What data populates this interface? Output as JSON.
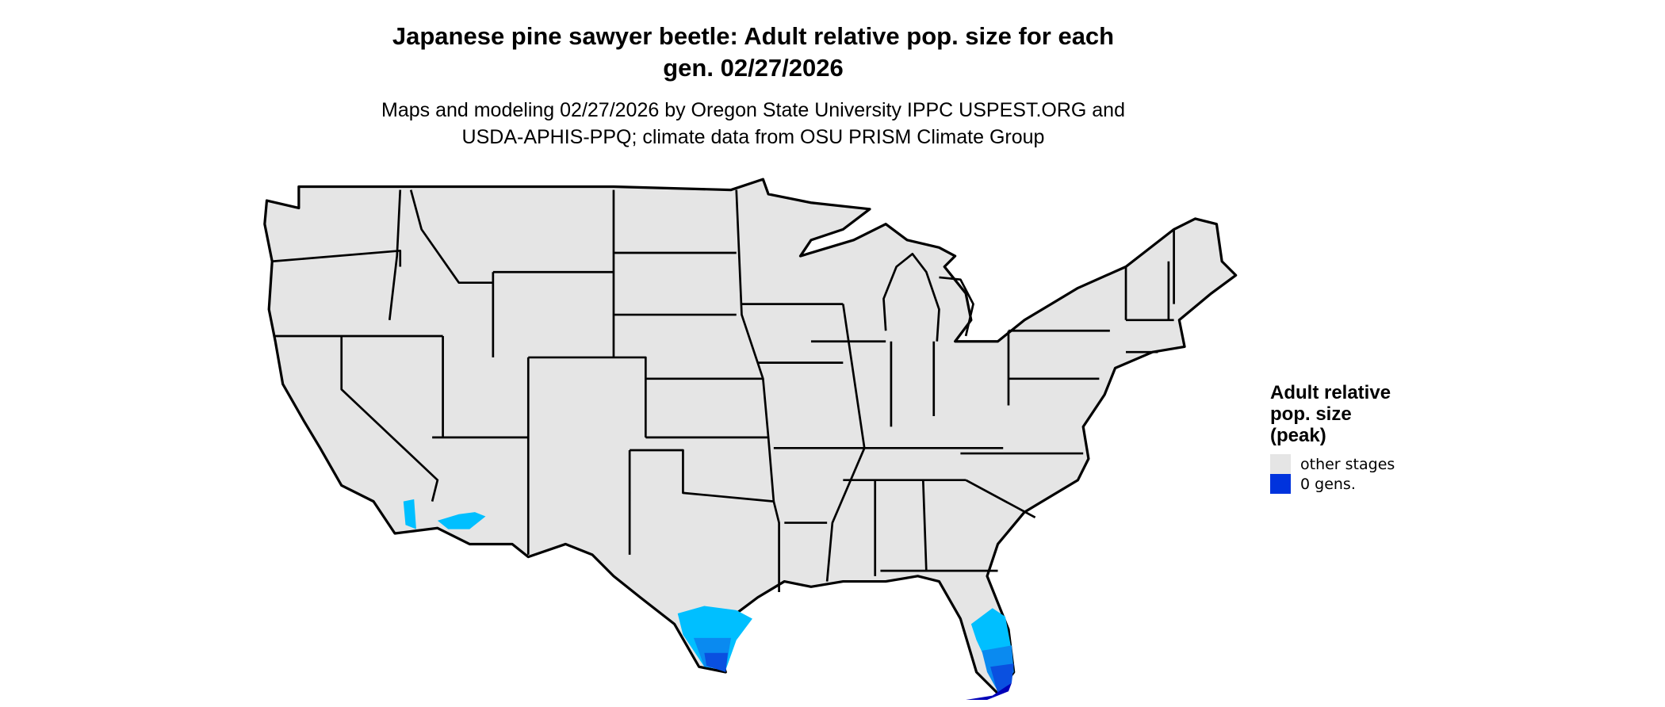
{
  "title": {
    "line1": "Japanese pine sawyer beetle: Adult relative pop. size for each",
    "line2": "gen. 02/27/2026"
  },
  "subtitle": {
    "line1": "Maps and modeling 02/27/2026 by Oregon State University IPPC USPEST.ORG and",
    "line2": "USDA-APHIS-PPQ; climate data from OSU PRISM Climate Group"
  },
  "legend": {
    "title_line1": "Adult relative",
    "title_line2": "pop. size",
    "title_line3": "(peak)",
    "items": [
      {
        "label": "other stages",
        "color": "#E5E5E5"
      },
      {
        "label": "0 gens.",
        "color": "#0033DD"
      }
    ]
  },
  "map": {
    "region": "Contiguous United States",
    "land_color": "#E5E5E5",
    "border_color": "#000000",
    "shade_colors": [
      "#00BFFF",
      "#0A8AF0",
      "#0A50E0",
      "#0000B8"
    ]
  }
}
